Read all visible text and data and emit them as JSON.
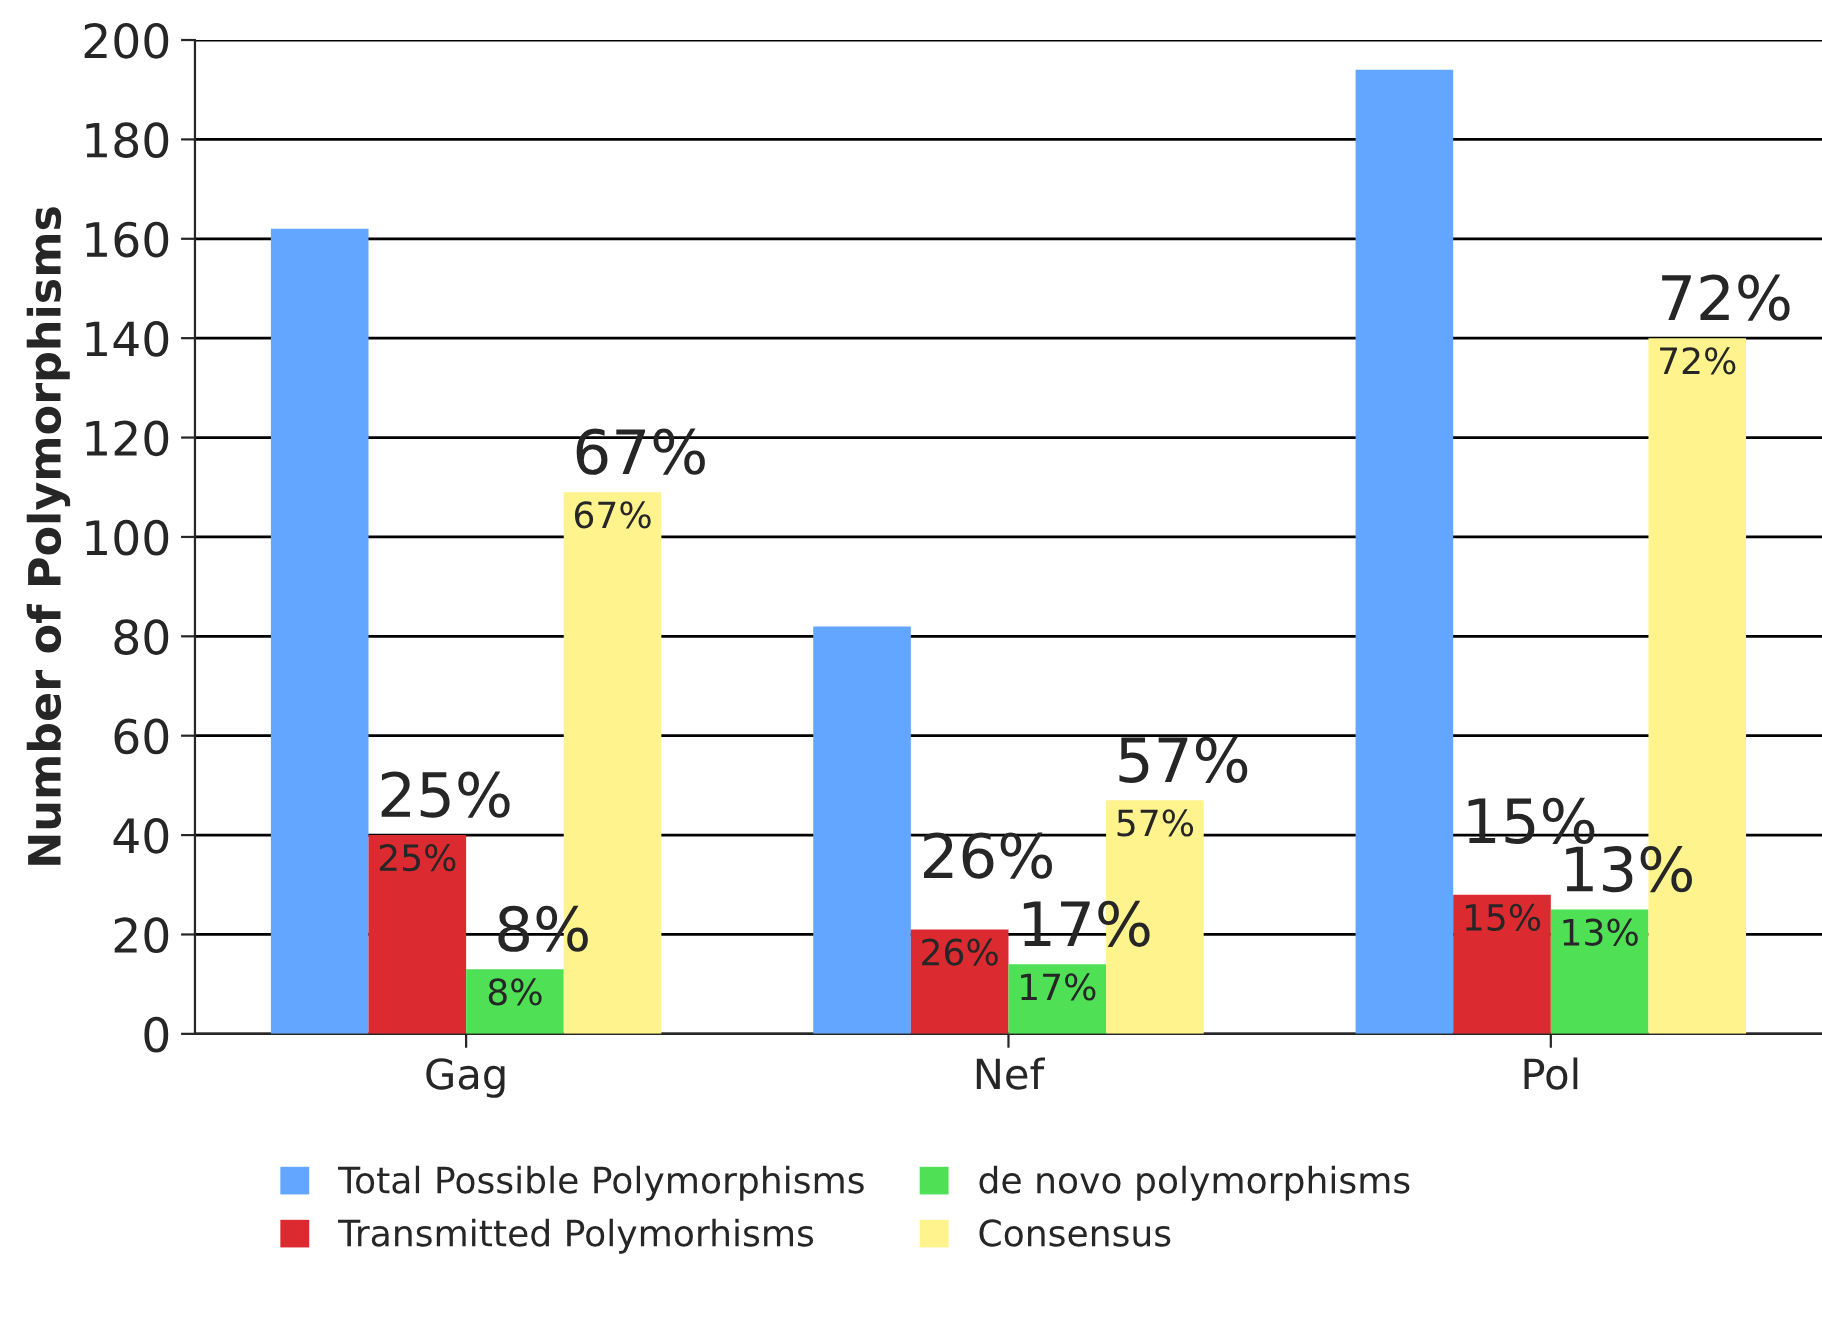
{
  "chart_data": {
    "type": "bar",
    "ylabel": "Number of Polymorphisms",
    "categories": [
      "Gag",
      "Nef",
      "Pol"
    ],
    "series": [
      {
        "name": "Total Possible Polymorphisms",
        "color": "#63a6ff",
        "values": [
          162,
          82,
          194
        ]
      },
      {
        "name": "Transmitted Polymorhisms",
        "color": "#dc2b30",
        "values": [
          40,
          21,
          28
        ]
      },
      {
        "name": "de novo polymorphisms",
        "color": "#4fe055",
        "values": [
          13,
          14,
          25
        ]
      },
      {
        "name": "Consensus",
        "color": "#fff38d",
        "values": [
          109,
          47,
          140
        ]
      }
    ],
    "annotations": [
      "25%",
      "25%",
      "8%",
      "8%",
      "67%",
      "67%",
      "26%",
      "26%",
      "17%",
      "17%",
      "57%",
      "57%",
      "15%",
      "15%",
      "13%",
      "13%",
      "72%",
      "72%"
    ],
    "ylim": [
      0,
      200
    ],
    "yticks": [
      0,
      20,
      40,
      60,
      80,
      100,
      120,
      140,
      160,
      180,
      200
    ],
    "grid": "y",
    "legend": "bottom"
  }
}
